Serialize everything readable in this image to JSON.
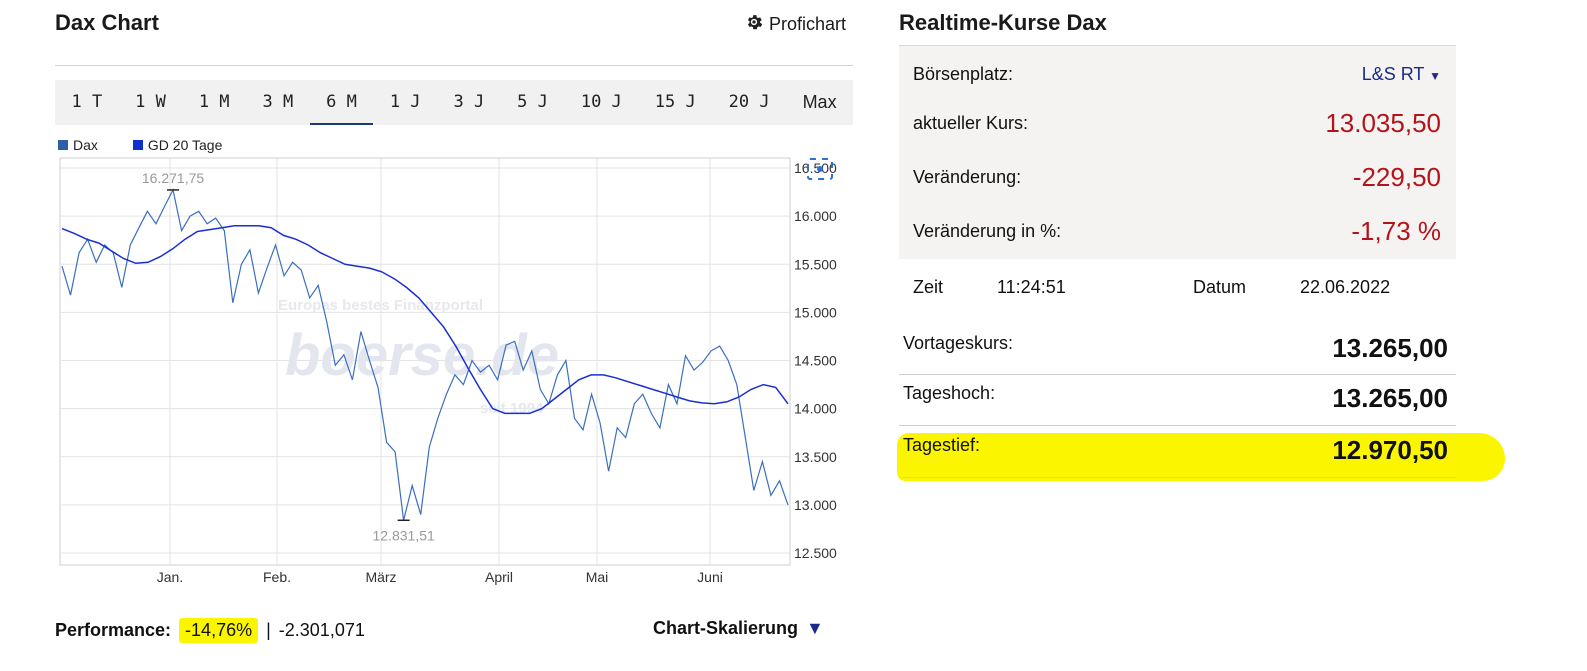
{
  "left_panel": {
    "title": "Dax Chart",
    "profichart_label": "Profichart",
    "tabs": [
      "1 T",
      "1 W",
      "1 M",
      "3 M",
      "6 M",
      "1 J",
      "3 J",
      "5 J",
      "10 J",
      "15 J",
      "20 J",
      "Max"
    ],
    "active_tab": "6 M",
    "legend": [
      {
        "label": "Dax",
        "color": "#2e5ea8"
      },
      {
        "label": "GD 20 Tage",
        "color": "#1030d0"
      }
    ],
    "performance": {
      "label": "Performance:",
      "percent": "-14,76%",
      "separator": "|",
      "points": "-2.301,071"
    },
    "chart_scaling_label": "Chart-Skalierung"
  },
  "chart_data": {
    "type": "line",
    "x_tick_labels": [
      "Jan.",
      "Feb.",
      "März",
      "April",
      "Mai",
      "Juni"
    ],
    "y_tick_labels": [
      "12.500",
      "13.000",
      "13.500",
      "14.000",
      "14.500",
      "15.000",
      "15.500",
      "16.000",
      "16.500"
    ],
    "ylim": [
      12500,
      16500
    ],
    "grid": true,
    "max_label": "16.271,75",
    "min_label": "12.831,51",
    "watermark": {
      "line1": "Europas bestes Finanzportal",
      "line2": "boerse.de",
      "line3": "seit 1994"
    },
    "series": [
      {
        "name": "Dax",
        "color": "#3a6fbf",
        "values": [
          15480,
          15180,
          15620,
          15760,
          15520,
          15700,
          15620,
          15260,
          15700,
          15880,
          16050,
          15920,
          16100,
          16272,
          15850,
          16000,
          16050,
          15920,
          15980,
          15850,
          15100,
          15500,
          15650,
          15200,
          15460,
          15700,
          15380,
          15520,
          15440,
          15150,
          15280,
          14900,
          14450,
          14560,
          14300,
          14800,
          14500,
          14220,
          13650,
          13550,
          12840,
          13200,
          12900,
          13600,
          13900,
          14150,
          14350,
          14250,
          14500,
          14380,
          14450,
          14300,
          14660,
          14700,
          14400,
          14600,
          14200,
          14050,
          14350,
          14500,
          13900,
          13780,
          14150,
          13850,
          13350,
          13800,
          13700,
          14050,
          14150,
          13950,
          13800,
          14250,
          14050,
          14550,
          14400,
          14480,
          14600,
          14650,
          14500,
          14250,
          13700,
          13150,
          13450,
          13100,
          13250,
          13000
        ]
      },
      {
        "name": "GD 20 Tage",
        "color": "#1a2fd1",
        "values": [
          15870,
          15820,
          15760,
          15720,
          15640,
          15560,
          15510,
          15520,
          15580,
          15660,
          15760,
          15840,
          15860,
          15880,
          15900,
          15900,
          15900,
          15880,
          15800,
          15760,
          15700,
          15620,
          15560,
          15500,
          15480,
          15460,
          15420,
          15350,
          15260,
          15150,
          15000,
          14850,
          14650,
          14420,
          14200,
          14000,
          13950,
          13950,
          13950,
          14000,
          14100,
          14200,
          14300,
          14350,
          14350,
          14320,
          14280,
          14240,
          14200,
          14160,
          14120,
          14080,
          14060,
          14050,
          14070,
          14120,
          14200,
          14250,
          14220,
          14050
        ]
      }
    ]
  },
  "right_panel": {
    "title": "Realtime-Kurse Dax",
    "boersenplatz": {
      "label": "Börsenplatz:",
      "value": "L&S RT"
    },
    "aktueller_kurs": {
      "label": "aktueller Kurs:",
      "value": "13.035,50"
    },
    "veraenderung": {
      "label": "Veränderung:",
      "value": "-229,50"
    },
    "veraenderung_pct": {
      "label": "Veränderung in %:",
      "value": "-1,73 %"
    },
    "zeit": {
      "label": "Zeit",
      "value": "11:24:51"
    },
    "datum": {
      "label": "Datum",
      "value": "22.06.2022"
    },
    "vortageskurs": {
      "label": "Vortageskurs:",
      "value": "13.265,00"
    },
    "tageshoch": {
      "label": "Tageshoch:",
      "value": "13.265,00"
    },
    "tagestief": {
      "label": "Tagestief:",
      "value": "12.970,50"
    },
    "highlight_color": "#fbf600"
  }
}
